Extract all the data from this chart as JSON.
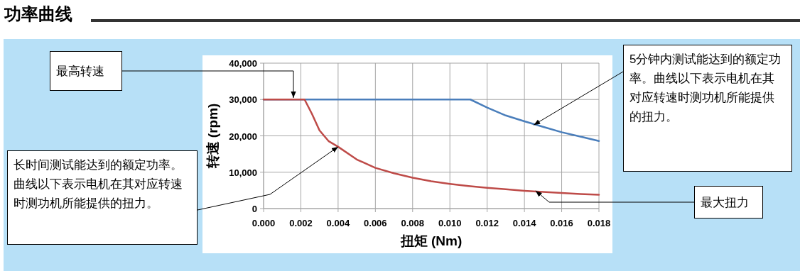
{
  "chart_data": {
    "type": "line",
    "title": "功率曲线",
    "xlabel": "扭矩 (Nm)",
    "ylabel": "转速 (rpm)",
    "xlim": [
      0,
      0.018
    ],
    "ylim": [
      0,
      40000
    ],
    "xticks": [
      {
        "value": 0,
        "label": "0.000"
      },
      {
        "value": 0.002,
        "label": "0.002"
      },
      {
        "value": 0.004,
        "label": "0.004"
      },
      {
        "value": 0.006,
        "label": "0.006"
      },
      {
        "value": 0.008,
        "label": "0.008"
      },
      {
        "value": 0.01,
        "label": "0.010"
      },
      {
        "value": 0.012,
        "label": "0.012"
      },
      {
        "value": 0.014,
        "label": "0.014"
      },
      {
        "value": 0.016,
        "label": "0.016"
      },
      {
        "value": 0.018,
        "label": "0.018"
      }
    ],
    "yticks": [
      0,
      {
        "value": 10000,
        "label": "10,000"
      },
      {
        "value": 20000,
        "label": "20,000"
      },
      {
        "value": 30000,
        "label": "30,000"
      },
      {
        "value": 40000,
        "label": "40,000"
      }
    ],
    "grid": true,
    "marker": "none",
    "line_style": "solid",
    "series": [
      {
        "color": "#4a7ebb",
        "x": [
          0,
          0.0111,
          0.012,
          0.013,
          0.014,
          0.015,
          0.016,
          0.017,
          0.018
        ],
        "values": [
          30000,
          30000,
          27800,
          25600,
          24000,
          22500,
          21000,
          19800,
          18600
        ]
      },
      {
        "color": "#be4b48",
        "x": [
          0,
          0.0022,
          0.0026,
          0.003,
          0.0035,
          0.004,
          0.005,
          0.006,
          0.007,
          0.008,
          0.009,
          0.01,
          0.011,
          0.012,
          0.013,
          0.014,
          0.015,
          0.016,
          0.017,
          0.018
        ],
        "values": [
          30000,
          30000,
          26000,
          21500,
          18500,
          17000,
          13500,
          11200,
          9700,
          8500,
          7500,
          6800,
          6200,
          5700,
          5300,
          4900,
          4600,
          4300,
          4000,
          3800
        ]
      }
    ],
    "annotations": [
      "最高转速",
      {
        "text": "5分钟内测试能达到的额定功率。曲线以下表示电机在其对应转速时测功机所能提供的扭力。",
        "x": 0.0145,
        "y": 23000
      },
      {
        "text": "长时间测试能达到的额定功率。曲线以下表示电机在其对应转速时测功机所能提供的扭力。",
        "x": 0.004,
        "y": 17000
      },
      {
        "text": "最大扭力",
        "x": 0.0146,
        "y": 4900
      }
    ]
  }
}
